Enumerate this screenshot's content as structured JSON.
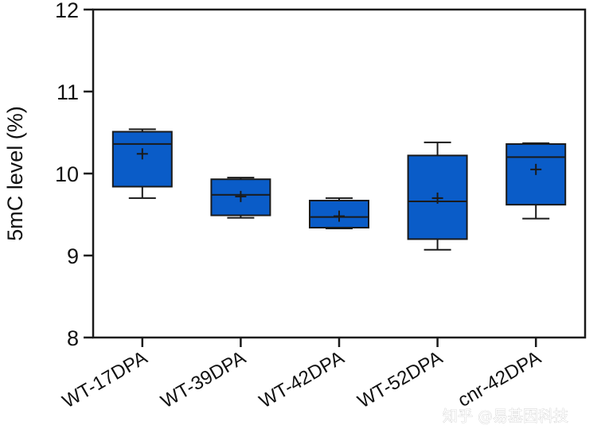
{
  "watermark": "知乎 @易基因科技",
  "chart_data": {
    "type": "box",
    "title": "",
    "xlabel": "",
    "ylabel": "5mC level (%)",
    "ylim": [
      8,
      12
    ],
    "yticks": [
      8,
      9,
      10,
      11,
      12
    ],
    "box_color": "#0a5cc8",
    "edge_color": "#1a1a1a",
    "categories": [
      "WT-17DPA",
      "WT-39DPA",
      "WT-42DPA",
      "WT-52DPA",
      "cnr-42DPA"
    ],
    "series": [
      {
        "boxes": [
          {
            "whisker_low": 9.7,
            "q1": 9.84,
            "median": 10.36,
            "q3": 10.51,
            "whisker_high": 10.54,
            "mean": 10.24
          },
          {
            "whisker_low": 9.46,
            "q1": 9.49,
            "median": 9.74,
            "q3": 9.93,
            "whisker_high": 9.95,
            "mean": 9.72
          },
          {
            "whisker_low": 9.33,
            "q1": 9.34,
            "median": 9.47,
            "q3": 9.67,
            "whisker_high": 9.7,
            "mean": 9.48
          },
          {
            "whisker_low": 9.07,
            "q1": 9.2,
            "median": 9.66,
            "q3": 10.22,
            "whisker_high": 10.38,
            "mean": 9.7
          },
          {
            "whisker_low": 9.45,
            "q1": 9.62,
            "median": 10.2,
            "q3": 10.36,
            "whisker_high": 10.37,
            "mean": 10.05
          }
        ]
      }
    ]
  }
}
